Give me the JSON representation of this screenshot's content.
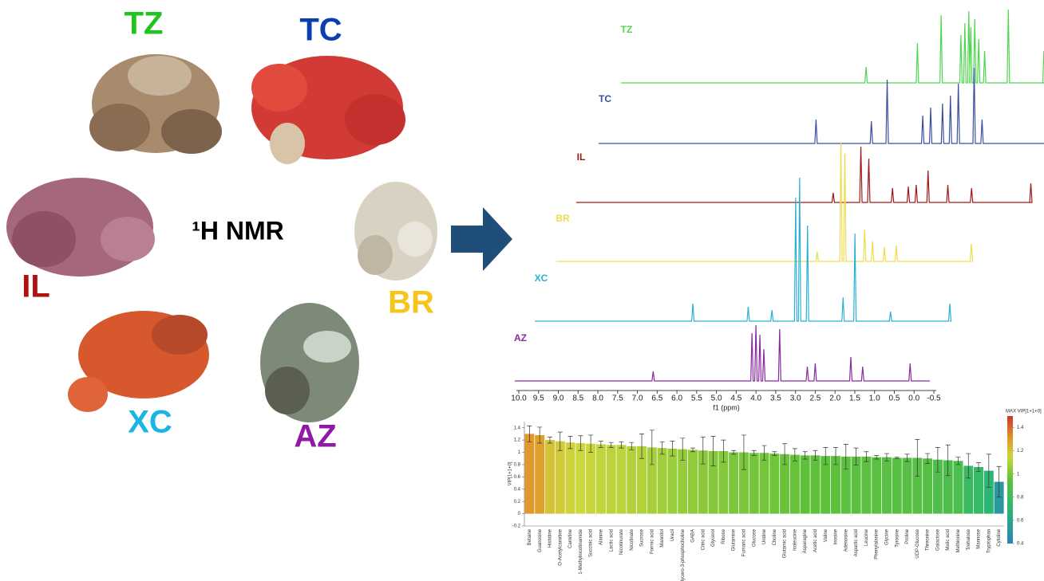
{
  "samples": [
    {
      "label": "TZ",
      "color": "#1fc41f",
      "spectrum_color": "#4fd64f"
    },
    {
      "label": "TC",
      "color": "#0a3fb0",
      "spectrum_color": "#3a4fa0"
    },
    {
      "label": "IL",
      "color": "#b01010",
      "spectrum_color": "#a01818"
    },
    {
      "label": "BR",
      "color": "#f5c518",
      "spectrum_color": "#eedc4a"
    },
    {
      "label": "XC",
      "color": "#1ab4e6",
      "spectrum_color": "#2ab0d8"
    },
    {
      "label": "AZ",
      "color": "#8e1aa6",
      "spectrum_color": "#8a2aa0"
    }
  ],
  "nmr_label": "¹H NMR",
  "spectra": {
    "xlabel": "f1 (ppm)",
    "xlim": [
      10.0,
      -0.5
    ],
    "xticks": [
      {
        "value": 10,
        "label": "10.0"
      },
      9.5,
      {
        "value": 9,
        "label": "9.0"
      },
      8.5,
      {
        "value": 8,
        "label": "8.0"
      },
      7.5,
      {
        "value": 7,
        "label": "7.0"
      },
      6.5,
      {
        "value": 6,
        "label": "6.0"
      },
      5.5,
      {
        "value": 5,
        "label": "5.0"
      },
      4.5,
      {
        "value": 4,
        "label": "4.0"
      },
      3.5,
      {
        "value": 3,
        "label": "3.0"
      },
      2.5,
      {
        "value": 2,
        "label": "2.0"
      },
      1.5,
      {
        "value": 1,
        "label": "1.0"
      },
      0.5,
      {
        "value": 0,
        "label": "0.0"
      },
      -0.5
    ]
  },
  "chart_data": {
    "type": "bar",
    "ylabel": "VIP[1+1+0]",
    "categories": [
      "Betaine",
      "Guanosine",
      "Histidine",
      "O-Acetylcarnitine",
      "Carnitine",
      "1-Methylnicotinamide",
      "Succinic acid",
      "Alanine",
      "Lactic acid",
      "Nicotinurate",
      "Nicotinate",
      "Sucrose",
      "Formic acid",
      "Mannitol",
      "Uracil",
      "Glycero-3-phosphocholine",
      "GABA",
      "Citric acid",
      "Glycerol",
      "Ribose",
      "Glutamine",
      "Fumaric acid",
      "Glucose",
      "Uridine",
      "Choline",
      "Glutamic acid",
      "Isoleucine",
      "Asparagine",
      "Acetic acid",
      "Valine",
      "Inosine",
      "Adenosine",
      "Aspartic acid",
      "Leucine",
      "Phenylalanine",
      "Glycine",
      "Tyrosine",
      "Proline",
      "UDP-Glucose",
      "Threonine",
      "Galactose",
      "Malic acid",
      "Methionine",
      "Trehalose",
      "Mannose",
      "Tryptophan",
      "Cytidine"
    ],
    "values": [
      1.3,
      1.28,
      1.2,
      1.18,
      1.16,
      1.15,
      1.14,
      1.13,
      1.12,
      1.12,
      1.1,
      1.1,
      1.08,
      1.07,
      1.06,
      1.05,
      1.04,
      1.03,
      1.02,
      1.02,
      1.0,
      1.0,
      0.99,
      0.99,
      0.98,
      0.97,
      0.96,
      0.95,
      0.95,
      0.94,
      0.94,
      0.93,
      0.93,
      0.93,
      0.92,
      0.92,
      0.91,
      0.91,
      0.91,
      0.9,
      0.88,
      0.87,
      0.86,
      0.78,
      0.76,
      0.7,
      0.52
    ],
    "errors": [
      0.13,
      0.13,
      0.05,
      0.15,
      0.1,
      0.12,
      0.14,
      0.05,
      0.04,
      0.05,
      0.06,
      0.2,
      0.28,
      0.1,
      0.12,
      0.18,
      0.03,
      0.22,
      0.24,
      0.18,
      0.03,
      0.28,
      0.04,
      0.12,
      0.03,
      0.17,
      0.1,
      0.06,
      0.08,
      0.14,
      0.14,
      0.2,
      0.14,
      0.08,
      0.03,
      0.06,
      0.01,
      0.06,
      0.3,
      0.08,
      0.2,
      0.25,
      0.06,
      0.2,
      0.07,
      0.27,
      0.25
    ],
    "ylim": [
      -0.2,
      1.5
    ],
    "yticks": [
      -0.2,
      0,
      0.2,
      0.4,
      0.6,
      0.8,
      1,
      1.2,
      1.4
    ],
    "colorbar": {
      "title": "MAX VIP[1+1+0]",
      "range": [
        0.4,
        1.5
      ],
      "ticks": [
        0.4,
        0.6,
        0.8,
        1,
        1.2,
        1.4
      ],
      "stops": [
        [
          0.4,
          "#2b83ba"
        ],
        [
          0.7,
          "#2bb673"
        ],
        [
          0.95,
          "#5fc13a"
        ],
        [
          1.15,
          "#cdd63c"
        ],
        [
          1.3,
          "#e2992c"
        ],
        [
          1.5,
          "#c8382a"
        ]
      ]
    }
  }
}
